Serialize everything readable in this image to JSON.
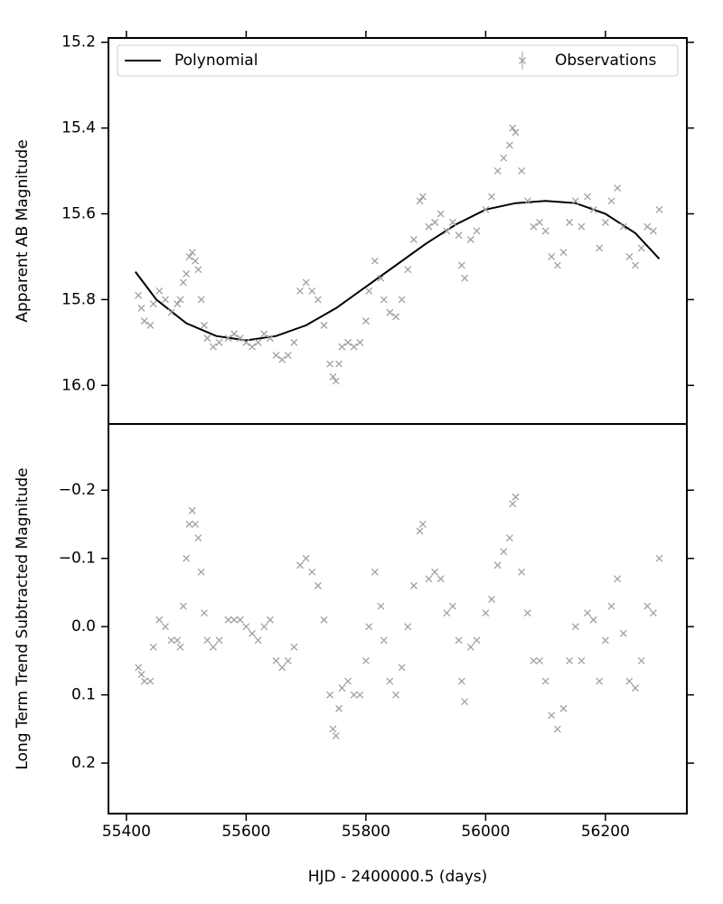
{
  "chart_data": [
    {
      "type": "scatter",
      "y_label": "Apparent AB Magnitude",
      "xlim": [
        55370,
        56336
      ],
      "xticks": [
        55400,
        55600,
        55800,
        56000,
        56200
      ],
      "ylim": [
        15.19,
        16.09
      ],
      "invert_y": true,
      "yticks": [
        15.2,
        15.4,
        15.6,
        15.8,
        {
          "value": 16.0,
          "label": "16.0"
        }
      ],
      "legend": "upper",
      "series": [
        {
          "name": "Polynomial",
          "color": "#000000",
          "style": "line",
          "x": [
            55415,
            55450,
            55500,
            55550,
            55600,
            55650,
            55700,
            55750,
            55800,
            55850,
            55900,
            55950,
            56000,
            56050,
            56100,
            56150,
            56200,
            56250,
            56290
          ],
          "values": [
            15.735,
            15.8,
            15.855,
            15.885,
            15.895,
            15.885,
            15.86,
            15.82,
            15.77,
            15.72,
            15.67,
            15.625,
            15.59,
            15.575,
            15.57,
            15.575,
            15.6,
            15.645,
            15.705
          ]
        },
        {
          "name": "Observations",
          "color": "#a0a0a0",
          "style": "marker",
          "x": [
            55420,
            55425,
            55430,
            55440,
            55445,
            55455,
            55465,
            55475,
            55485,
            55490,
            55495,
            55500,
            55505,
            55510,
            55515,
            55520,
            55525,
            55530,
            55535,
            55545,
            55555,
            55570,
            55580,
            55590,
            55600,
            55610,
            55620,
            55630,
            55640,
            55650,
            55660,
            55670,
            55680,
            55690,
            55700,
            55710,
            55720,
            55730,
            55740,
            55745,
            55750,
            55755,
            55760,
            55770,
            55780,
            55790,
            55800,
            55805,
            55815,
            55825,
            55830,
            55840,
            55850,
            55860,
            55870,
            55880,
            55890,
            55895,
            55905,
            55915,
            55925,
            55935,
            55945,
            55955,
            55960,
            55965,
            55975,
            55985,
            56000,
            56010,
            56020,
            56030,
            56040,
            56045,
            56050,
            56060,
            56070,
            56080,
            56090,
            56100,
            56110,
            56120,
            56130,
            56140,
            56150,
            56160,
            56170,
            56180,
            56190,
            56200,
            56210,
            56220,
            56230,
            56240,
            56250,
            56260,
            56270,
            56280,
            56290
          ],
          "values": [
            15.79,
            15.82,
            15.85,
            15.86,
            15.81,
            15.78,
            15.8,
            15.83,
            15.81,
            15.8,
            15.76,
            15.74,
            15.7,
            15.69,
            15.71,
            15.73,
            15.8,
            15.86,
            15.89,
            15.91,
            15.9,
            15.89,
            15.88,
            15.89,
            15.9,
            15.91,
            15.9,
            15.88,
            15.89,
            15.93,
            15.94,
            15.93,
            15.9,
            15.78,
            15.76,
            15.78,
            15.8,
            15.86,
            15.95,
            15.98,
            15.99,
            15.95,
            15.91,
            15.9,
            15.91,
            15.9,
            15.85,
            15.78,
            15.71,
            15.75,
            15.8,
            15.83,
            15.84,
            15.8,
            15.73,
            15.66,
            15.57,
            15.56,
            15.63,
            15.62,
            15.6,
            15.64,
            15.62,
            15.65,
            15.72,
            15.75,
            15.66,
            15.64,
            15.59,
            15.56,
            15.5,
            15.47,
            15.44,
            15.4,
            15.41,
            15.5,
            15.57,
            15.63,
            15.62,
            15.64,
            15.7,
            15.72,
            15.69,
            15.62,
            15.57,
            15.63,
            15.56,
            15.59,
            15.68,
            15.62,
            15.57,
            15.54,
            15.63,
            15.7,
            15.72,
            15.68,
            15.63,
            15.64,
            15.59
          ]
        }
      ]
    },
    {
      "type": "scatter",
      "y_label": "Long Term Trend Subtracted Magnitude",
      "x_label": "HJD - 2400000.5 (days)",
      "xlim": [
        55370,
        56336
      ],
      "xticks": [
        55400,
        55600,
        55800,
        56000,
        56200
      ],
      "ylim": [
        -0.297,
        0.274
      ],
      "invert_y": true,
      "yticks": [
        {
          "value": -0.2,
          "label": "−0.2"
        },
        {
          "value": -0.1,
          "label": "−0.1"
        },
        {
          "value": 0.0,
          "label": "0.0"
        },
        0.1,
        0.2
      ],
      "series": [
        {
          "color": "#a0a0a0",
          "style": "marker",
          "x": [
            55420,
            55425,
            55430,
            55440,
            55445,
            55455,
            55465,
            55475,
            55485,
            55490,
            55495,
            55500,
            55505,
            55510,
            55515,
            55520,
            55525,
            55530,
            55535,
            55545,
            55555,
            55570,
            55580,
            55590,
            55600,
            55610,
            55620,
            55630,
            55640,
            55650,
            55660,
            55670,
            55680,
            55690,
            55700,
            55710,
            55720,
            55730,
            55740,
            55745,
            55750,
            55755,
            55760,
            55770,
            55780,
            55790,
            55800,
            55805,
            55815,
            55825,
            55830,
            55840,
            55850,
            55860,
            55870,
            55880,
            55890,
            55895,
            55905,
            55915,
            55925,
            55935,
            55945,
            55955,
            55960,
            55965,
            55975,
            55985,
            56000,
            56010,
            56020,
            56030,
            56040,
            56045,
            56050,
            56060,
            56070,
            56080,
            56090,
            56100,
            56110,
            56120,
            56130,
            56140,
            56150,
            56160,
            56170,
            56180,
            56190,
            56200,
            56210,
            56220,
            56230,
            56240,
            56250,
            56260,
            56270,
            56280,
            56290
          ],
          "values": [
            0.06,
            0.07,
            0.08,
            0.08,
            0.03,
            -0.01,
            0.0,
            0.02,
            0.02,
            0.03,
            -0.03,
            -0.1,
            -0.15,
            -0.17,
            -0.15,
            -0.13,
            -0.08,
            -0.02,
            0.02,
            0.03,
            0.02,
            -0.01,
            -0.01,
            -0.01,
            0.0,
            0.01,
            0.02,
            0.0,
            -0.01,
            0.05,
            0.06,
            0.05,
            0.03,
            -0.09,
            -0.1,
            -0.08,
            -0.06,
            -0.01,
            0.1,
            0.15,
            0.16,
            0.12,
            0.09,
            0.08,
            0.1,
            0.1,
            0.05,
            0.0,
            -0.08,
            -0.03,
            0.02,
            0.08,
            0.1,
            0.06,
            0.0,
            -0.06,
            -0.14,
            -0.15,
            -0.07,
            -0.08,
            -0.07,
            -0.02,
            -0.03,
            0.02,
            0.08,
            0.11,
            0.03,
            0.02,
            -0.02,
            -0.04,
            -0.09,
            -0.11,
            -0.13,
            -0.18,
            -0.19,
            -0.08,
            -0.02,
            0.05,
            0.05,
            0.08,
            0.13,
            0.15,
            0.12,
            0.05,
            0.0,
            0.05,
            -0.02,
            -0.01,
            0.08,
            0.02,
            -0.03,
            -0.07,
            0.01,
            0.08,
            0.09,
            0.05,
            -0.03,
            -0.02,
            -0.1
          ]
        }
      ]
    }
  ]
}
